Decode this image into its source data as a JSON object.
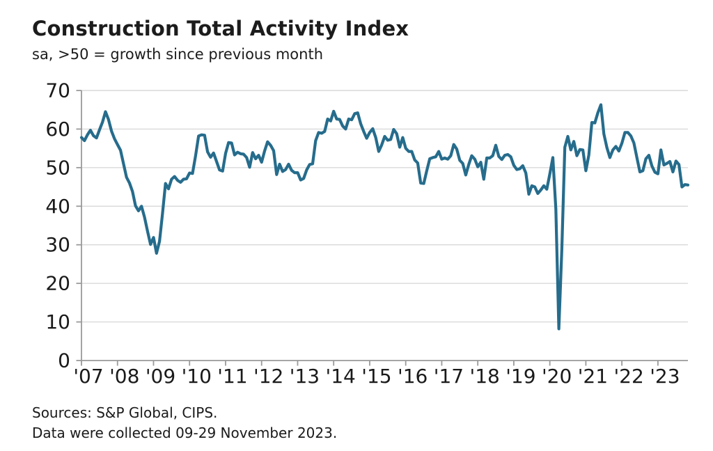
{
  "chart_data": {
    "type": "line",
    "title": "Construction Total Activity Index",
    "subtitle": "sa, >50 = growth since previous month",
    "source_line1": "Sources: S&P Global, CIPS.",
    "source_line2": "Data were collected 09-29 November 2023.",
    "ylim": [
      0,
      70
    ],
    "y_ticks": [
      0,
      10,
      20,
      30,
      40,
      50,
      60,
      70
    ],
    "x_tick_labels": [
      "'07",
      "'08",
      "'09",
      "'10",
      "'11",
      "'12",
      "'13",
      "'14",
      "'15",
      "'16",
      "'17",
      "'18",
      "'19",
      "'20",
      "'21",
      "'22",
      "'23"
    ],
    "x_start": "2007-01",
    "x_end": "2023-11",
    "frequency": "monthly",
    "grid": true,
    "legend_position": "none",
    "line_color": "#266C8C",
    "grid_color": "#d9d9d9",
    "axis_color": "#9a9a9a",
    "text_color": "#1a1a1a",
    "series": [
      {
        "name": "Total Activity Index",
        "values": [
          57.8,
          57.0,
          58.5,
          59.7,
          58.3,
          57.7,
          59.8,
          61.8,
          64.5,
          62.5,
          59.5,
          57.5,
          56.0,
          54.5,
          51.0,
          47.5,
          46.0,
          43.8,
          40.1,
          38.8,
          40.0,
          37.2,
          33.5,
          30.1,
          31.9,
          27.8,
          30.9,
          38.1,
          45.9,
          44.5,
          47.0,
          47.7,
          46.7,
          46.2,
          47.0,
          47.1,
          48.6,
          48.5,
          53.1,
          58.2,
          58.5,
          58.4,
          54.1,
          52.7,
          53.8,
          51.6,
          49.4,
          49.1,
          53.7,
          56.5,
          56.4,
          53.3,
          54.0,
          53.6,
          53.5,
          52.6,
          50.1,
          53.9,
          52.3,
          53.2,
          51.4,
          54.3,
          56.7,
          55.8,
          54.4,
          48.2,
          50.9,
          49.0,
          49.5,
          50.9,
          49.3,
          48.7,
          48.7,
          46.8,
          47.2,
          49.4,
          50.8,
          51.0,
          57.0,
          59.1,
          58.9,
          59.4,
          62.6,
          62.1,
          64.6,
          62.6,
          62.5,
          60.8,
          60.0,
          62.6,
          62.4,
          64.0,
          64.2,
          61.4,
          59.4,
          57.6,
          59.1,
          60.1,
          57.8,
          54.2,
          55.9,
          58.1,
          57.1,
          57.3,
          59.9,
          58.8,
          55.3,
          57.8,
          55.0,
          54.2,
          54.2,
          52.0,
          51.2,
          46.0,
          45.9,
          49.2,
          52.3,
          52.6,
          52.8,
          54.2,
          52.2,
          52.5,
          52.2,
          53.1,
          56.0,
          54.8,
          51.9,
          51.1,
          48.1,
          50.8,
          53.1,
          52.2,
          50.2,
          51.4,
          47.0,
          52.5,
          52.5,
          53.1,
          55.8,
          52.9,
          52.1,
          53.2,
          53.4,
          52.8,
          50.6,
          49.5,
          49.7,
          50.5,
          48.6,
          43.1,
          45.3,
          45.0,
          43.3,
          44.2,
          45.3,
          44.4,
          48.4,
          52.6,
          39.3,
          8.2,
          28.9,
          55.3,
          58.1,
          54.6,
          56.8,
          53.1,
          54.7,
          54.6,
          49.2,
          53.3,
          61.7,
          61.6,
          64.2,
          66.3,
          58.7,
          55.2,
          52.6,
          54.6,
          55.5,
          54.3,
          56.3,
          59.1,
          59.1,
          58.2,
          56.4,
          52.6,
          48.9,
          49.2,
          52.3,
          53.2,
          50.4,
          48.8,
          48.4,
          54.6,
          50.7,
          51.1,
          51.6,
          48.9,
          51.7,
          50.8,
          45.0,
          45.6,
          45.5
        ]
      }
    ]
  }
}
